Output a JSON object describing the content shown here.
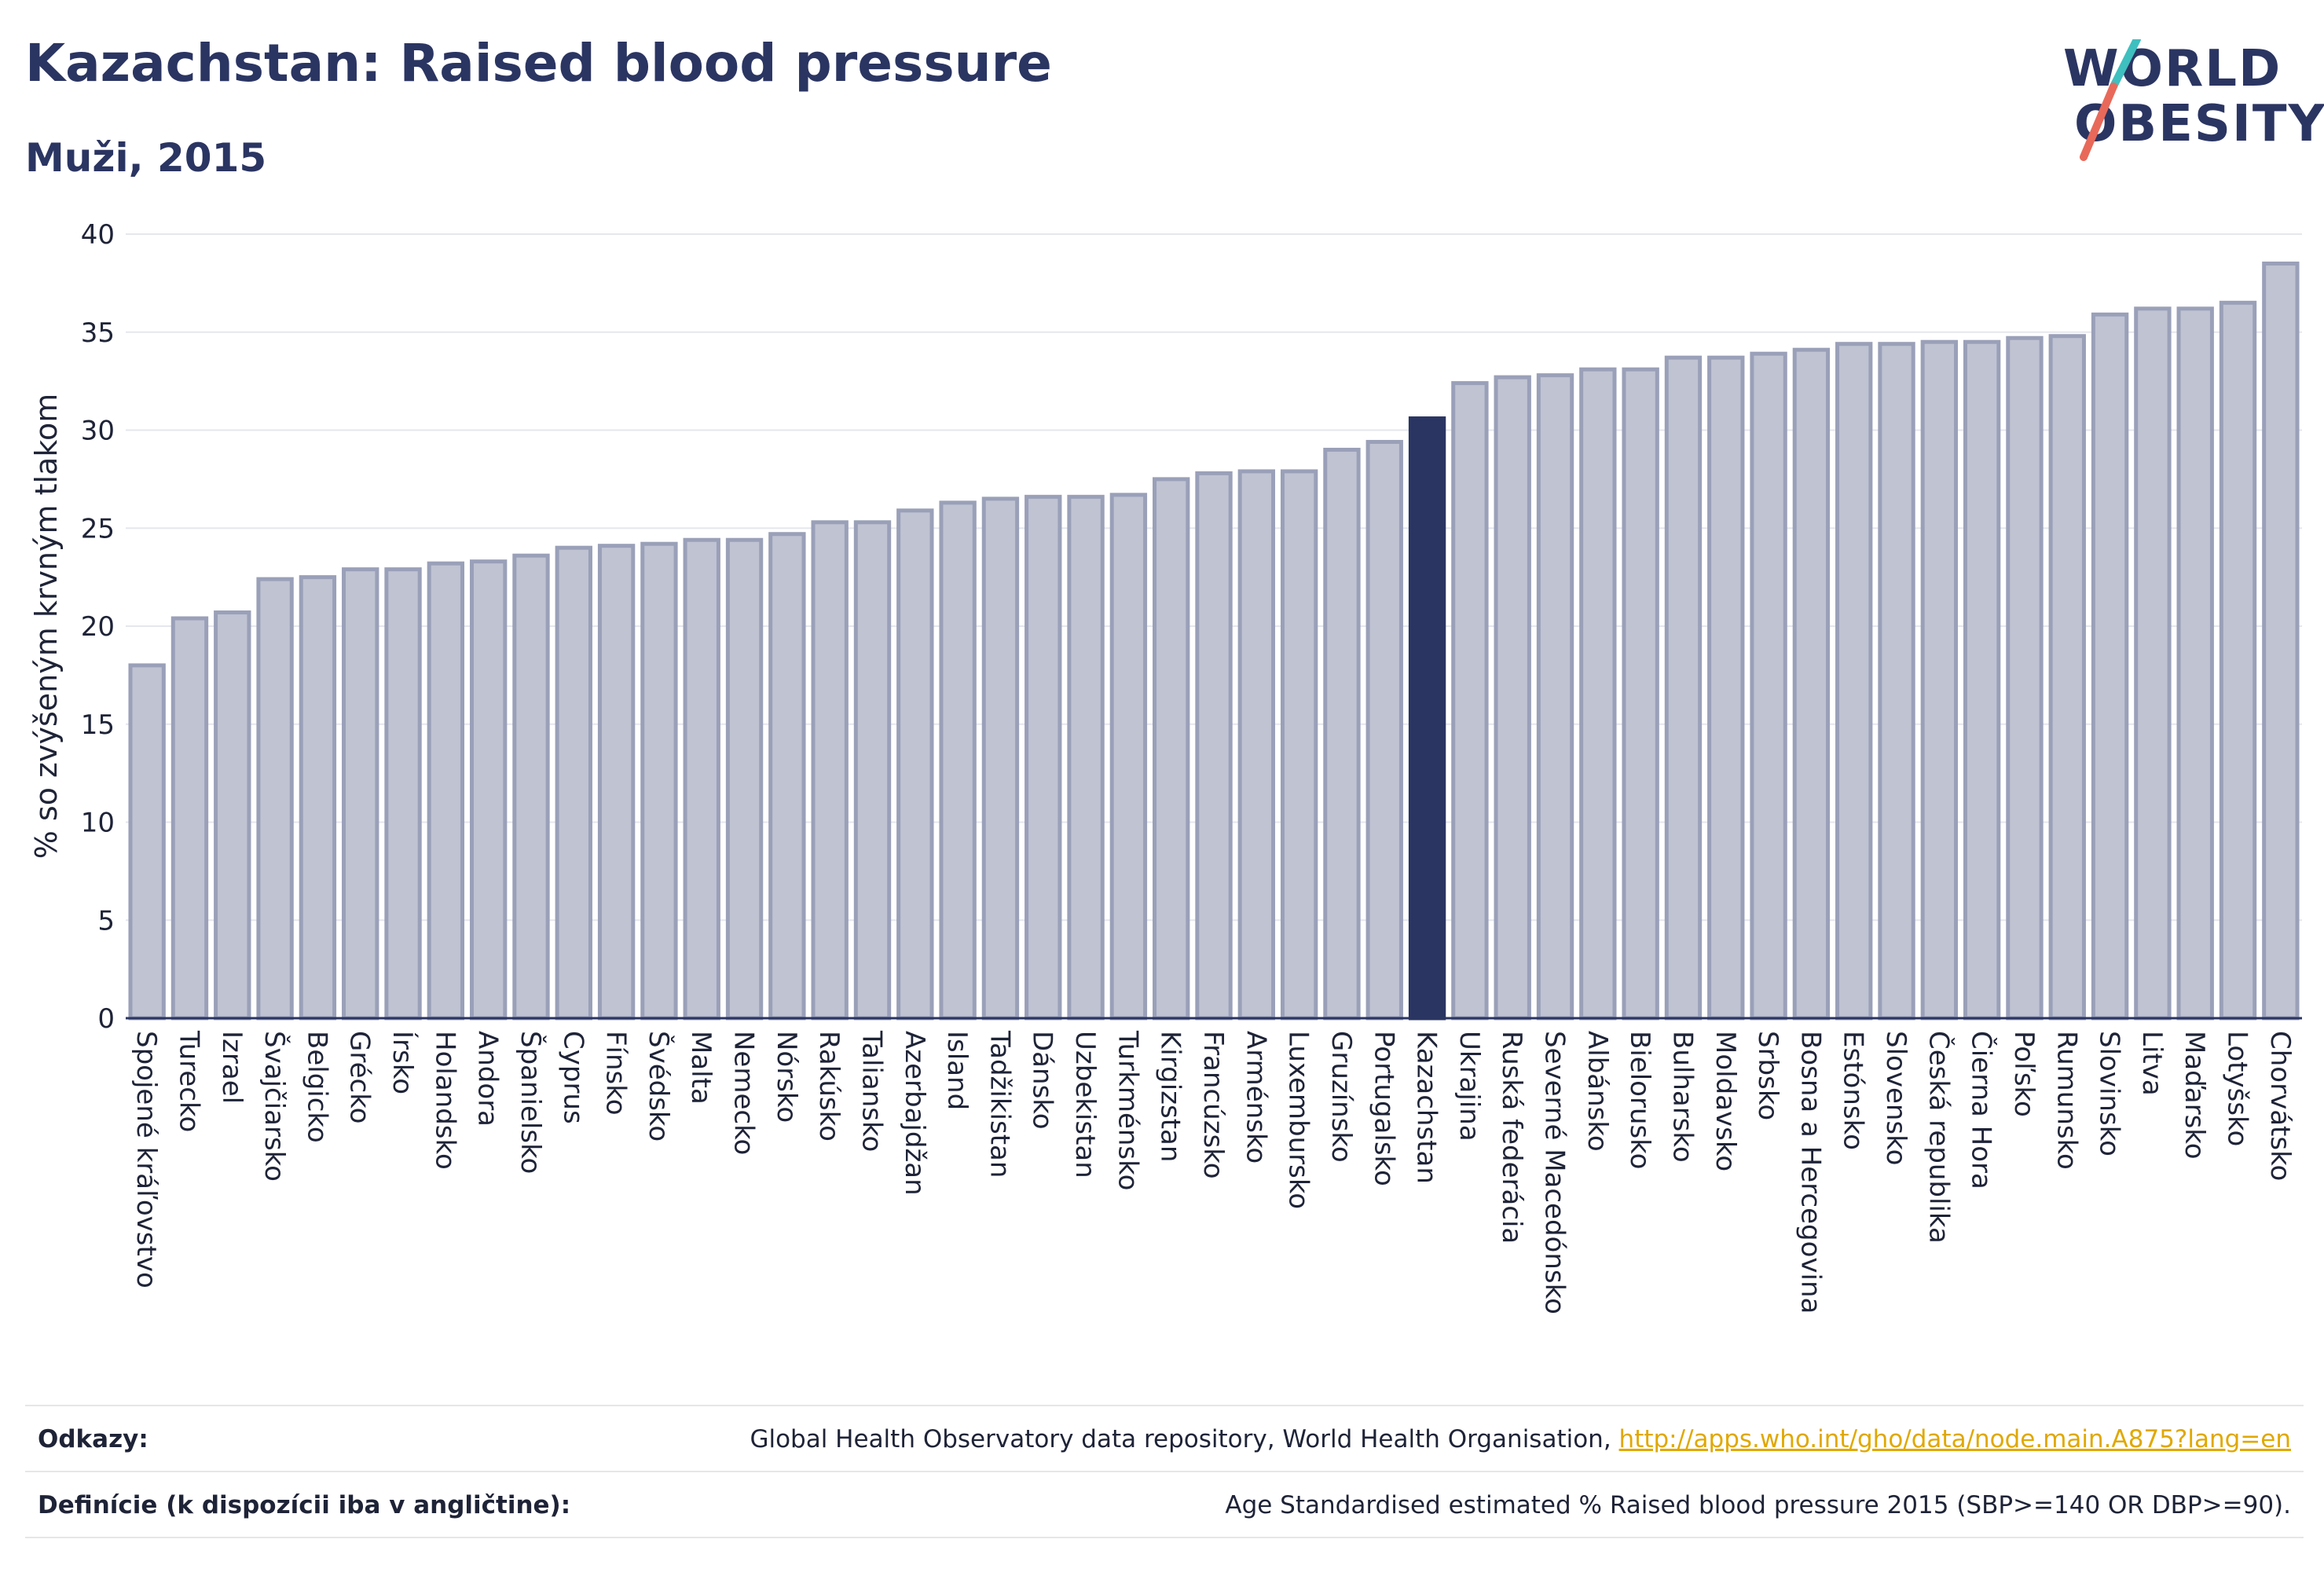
{
  "header": {
    "title": "Kazachstan: Raised blood pressure",
    "subtitle": "Muži, 2015"
  },
  "logo": {
    "line1": "WORLD",
    "line2": "OBESITY"
  },
  "chart_data": {
    "type": "bar",
    "ylabel": "% so zvýšeným krvným tlakom",
    "ylim": [
      0,
      40
    ],
    "yticks": [
      0,
      5,
      10,
      15,
      20,
      25,
      30,
      35,
      40
    ],
    "grid": true,
    "highlight": "Kazachstan",
    "colors": {
      "bar": "#bfc3d2",
      "bar_border": "#9aa0b8",
      "highlight": "#2b3562",
      "grid": "#e5e7ee",
      "axis": "#2b3562"
    },
    "categories": [
      "Spojené kráľovstvo",
      "Turecko",
      "Izrael",
      "Švajčiarsko",
      "Belgicko",
      "Grécko",
      "Írsko",
      "Holandsko",
      "Andora",
      "Španielsko",
      "Cyprus",
      "Fínsko",
      "Švédsko",
      "Malta",
      "Nemecko",
      "Nórsko",
      "Rakúsko",
      "Taliansko",
      "Azerbajdžan",
      "Island",
      "Tadžikistan",
      "Dánsko",
      "Uzbekistan",
      "Turkménsko",
      "Kirgizstan",
      "Francúzsko",
      "Arménsko",
      "Luxembursko",
      "Gruzínsko",
      "Portugalsko",
      "Kazachstan",
      "Ukrajina",
      "Ruská federácia",
      "Severné Macedónsko",
      "Albánsko",
      "Bielorusko",
      "Bulharsko",
      "Moldavsko",
      "Srbsko",
      "Bosna a Hercegovina",
      "Estónsko",
      "Slovensko",
      "Česká republika",
      "Čierna Hora",
      "Poľsko",
      "Rumunsko",
      "Slovinsko",
      "Litva",
      "Maďarsko",
      "Lotyšsko",
      "Chorvátsko"
    ],
    "values": [
      18.0,
      20.4,
      20.7,
      22.4,
      22.5,
      22.9,
      22.9,
      23.2,
      23.3,
      23.6,
      24.0,
      24.1,
      24.2,
      24.4,
      24.4,
      24.7,
      25.3,
      25.3,
      25.9,
      26.3,
      26.5,
      26.6,
      26.6,
      26.7,
      27.5,
      27.8,
      27.9,
      27.9,
      29.0,
      29.4,
      30.6,
      32.4,
      32.7,
      32.8,
      33.1,
      33.1,
      33.7,
      33.7,
      33.9,
      34.1,
      34.4,
      34.4,
      34.5,
      34.5,
      34.7,
      34.8,
      35.9,
      36.2,
      36.2,
      36.5,
      38.5
    ]
  },
  "footer": {
    "sources_label": "Odkazy:",
    "sources_text": "Global Health Observatory data repository, World Health Organisation,",
    "sources_link": "http://apps.who.int/gho/data/node.main.A875?lang=en",
    "definitions_label": "Definície (k dispozícii iba v angličtine):",
    "definitions_text": "Age Standardised estimated % Raised blood pressure 2015 (SBP>=140 OR DBP>=90)."
  }
}
